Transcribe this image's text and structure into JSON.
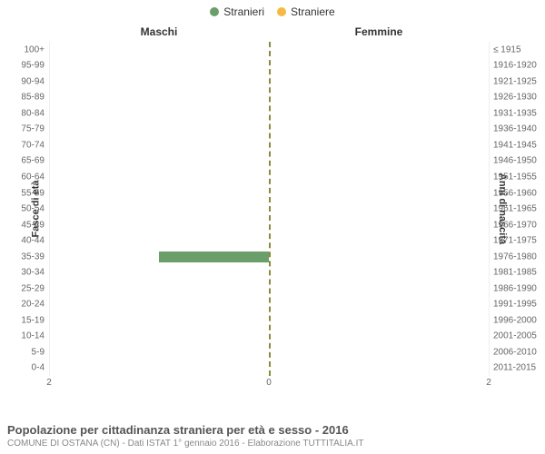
{
  "chart": {
    "type": "population-pyramid",
    "legend": [
      {
        "label": "Stranieri",
        "color": "#6a9e6a"
      },
      {
        "label": "Straniere",
        "color": "#f5b944"
      }
    ],
    "column_titles": {
      "left": "Maschi",
      "right": "Femmine"
    },
    "y_axis_left": {
      "title": "Fasce di età"
    },
    "y_axis_right": {
      "title": "Anni di nascita"
    },
    "x_axis": {
      "max": 2,
      "ticks": [
        2,
        0,
        2
      ],
      "tick_positions_pct": [
        0,
        50,
        100
      ]
    },
    "center_line_color": "#8a8a3a",
    "bar_color_male": "#6a9e6a",
    "bar_color_female": "#f5b944",
    "background_color": "#ffffff",
    "grid_color": "#eeeeee",
    "rows": [
      {
        "age": "100+",
        "birth": "≤ 1915",
        "male": 0,
        "female": 0
      },
      {
        "age": "95-99",
        "birth": "1916-1920",
        "male": 0,
        "female": 0
      },
      {
        "age": "90-94",
        "birth": "1921-1925",
        "male": 0,
        "female": 0
      },
      {
        "age": "85-89",
        "birth": "1926-1930",
        "male": 0,
        "female": 0
      },
      {
        "age": "80-84",
        "birth": "1931-1935",
        "male": 0,
        "female": 0
      },
      {
        "age": "75-79",
        "birth": "1936-1940",
        "male": 0,
        "female": 0
      },
      {
        "age": "70-74",
        "birth": "1941-1945",
        "male": 0,
        "female": 0
      },
      {
        "age": "65-69",
        "birth": "1946-1950",
        "male": 0,
        "female": 0
      },
      {
        "age": "60-64",
        "birth": "1951-1955",
        "male": 0,
        "female": 0
      },
      {
        "age": "55-59",
        "birth": "1956-1960",
        "male": 0,
        "female": 0
      },
      {
        "age": "50-54",
        "birth": "1961-1965",
        "male": 0,
        "female": 0
      },
      {
        "age": "45-49",
        "birth": "1966-1970",
        "male": 0,
        "female": 0
      },
      {
        "age": "40-44",
        "birth": "1971-1975",
        "male": 0,
        "female": 0
      },
      {
        "age": "35-39",
        "birth": "1976-1980",
        "male": 1,
        "female": 0
      },
      {
        "age": "30-34",
        "birth": "1981-1985",
        "male": 0,
        "female": 0
      },
      {
        "age": "25-29",
        "birth": "1986-1990",
        "male": 0,
        "female": 0
      },
      {
        "age": "20-24",
        "birth": "1991-1995",
        "male": 0,
        "female": 0
      },
      {
        "age": "15-19",
        "birth": "1996-2000",
        "male": 0,
        "female": 0
      },
      {
        "age": "10-14",
        "birth": "2001-2005",
        "male": 0,
        "female": 0
      },
      {
        "age": "5-9",
        "birth": "2006-2010",
        "male": 0,
        "female": 0
      },
      {
        "age": "0-4",
        "birth": "2011-2015",
        "male": 0,
        "female": 0
      }
    ]
  },
  "footer": {
    "title": "Popolazione per cittadinanza straniera per età e sesso - 2016",
    "subtitle": "COMUNE DI OSTANA (CN) - Dati ISTAT 1° gennaio 2016 - Elaborazione TUTTITALIA.IT"
  }
}
